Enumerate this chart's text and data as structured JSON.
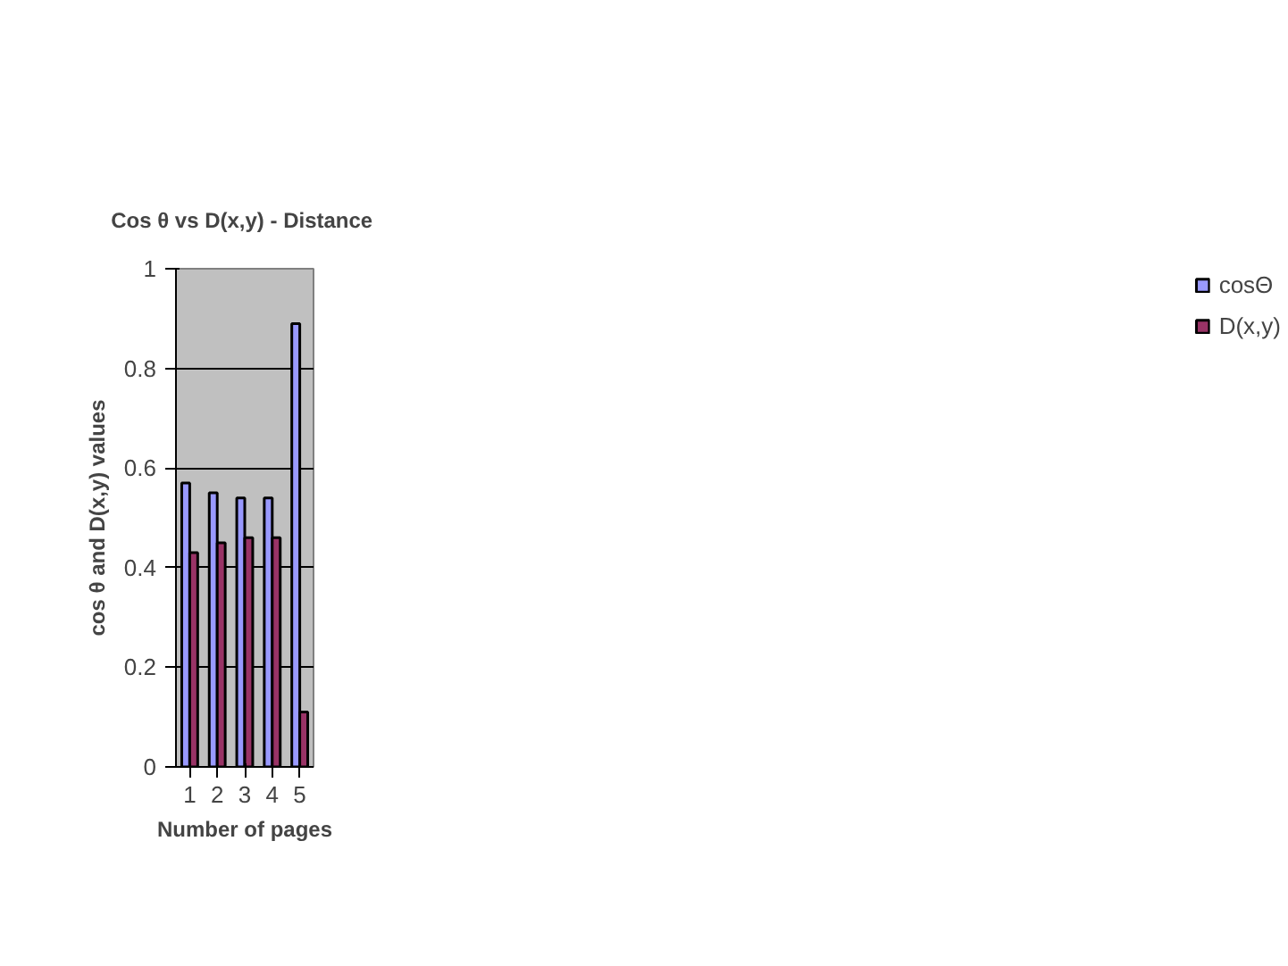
{
  "chart_data": {
    "type": "bar",
    "title": "Cos θ vs  D(x,y) - Distance",
    "xlabel": "Number of pages",
    "ylabel": "cos θ and D(x,y) values",
    "categories": [
      "1",
      "2",
      "3",
      "4",
      "5"
    ],
    "series": [
      {
        "name": "cosΘ",
        "color": "#9999ff",
        "values": [
          0.57,
          0.55,
          0.54,
          0.54,
          0.89
        ]
      },
      {
        "name": "D(x,y)",
        "color": "#993366",
        "values": [
          0.43,
          0.45,
          0.46,
          0.46,
          0.11
        ]
      }
    ],
    "ylim": [
      0,
      1
    ],
    "yticks": [
      0,
      0.2,
      0.4,
      0.6,
      0.8,
      1
    ],
    "grid": "y",
    "legend": "top right"
  }
}
